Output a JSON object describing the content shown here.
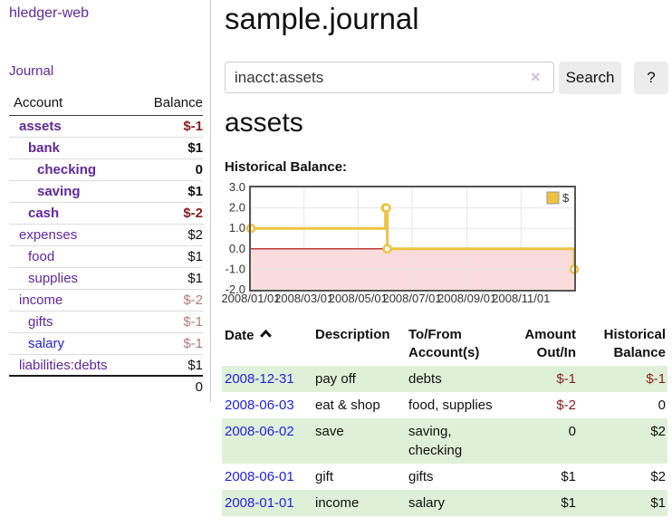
{
  "colors": {
    "accent_series": "#edc240",
    "negative_region_fill": "#fbdcdc",
    "zero_line": "#aa0000",
    "grid": "#e6e6e6",
    "link_purple": "#5f27a3",
    "link_blue": "#2222dd",
    "negative_strong": "#8b1c1c",
    "negative_soft": "#bb7878",
    "row_green": "#dff0d8",
    "plot_border": "#555555"
  },
  "brand": "hledger-web",
  "nav": {
    "journal": "Journal"
  },
  "page": {
    "title": "sample.journal",
    "account_heading": "assets"
  },
  "search": {
    "value": "inacct:assets",
    "clear": "×",
    "button_label": "Search",
    "help_label": "?"
  },
  "sidebar": {
    "header": {
      "account": "Account",
      "balance": "Balance"
    },
    "accounts": [
      {
        "name": "assets",
        "balance": "$-1"
      },
      {
        "name": "bank",
        "balance": "$1"
      },
      {
        "name": "checking",
        "balance": "0"
      },
      {
        "name": "saving",
        "balance": "$1"
      },
      {
        "name": "cash",
        "balance": "$-2"
      },
      {
        "name": "expenses",
        "balance": "$2"
      },
      {
        "name": "food",
        "balance": "$1"
      },
      {
        "name": "supplies",
        "balance": "$1"
      },
      {
        "name": "income",
        "balance": "$-2"
      },
      {
        "name": "gifts",
        "balance": "$-1"
      },
      {
        "name": "salary",
        "balance": "$-1"
      },
      {
        "name": "liabilities:debts",
        "balance": "$1"
      }
    ],
    "total": "0"
  },
  "chart_data": {
    "type": "line",
    "title": "Historical Balance:",
    "step": true,
    "grid": true,
    "legend_position": "top-right",
    "x_range": [
      "2008-01-01",
      "2008-12-31"
    ],
    "ylim": [
      -2,
      3
    ],
    "yticks": [
      {
        "v": -2,
        "label": "-2.0"
      },
      {
        "v": -1,
        "label": "-1.0"
      },
      {
        "v": 0,
        "label": "0.0"
      },
      {
        "v": 1,
        "label": "1.0"
      },
      {
        "v": 2,
        "label": "2.0"
      },
      {
        "v": 3,
        "label": "3.0"
      }
    ],
    "xticks": [
      {
        "date": "2008-01-01",
        "label": "2008/01/01"
      },
      {
        "date": "2008-03-01",
        "label": "2008/03/01"
      },
      {
        "date": "2008-05-01",
        "label": "2008/05/01"
      },
      {
        "date": "2008-07-01",
        "label": "2008/07/01"
      },
      {
        "date": "2008-09-01",
        "label": "2008/09/01"
      },
      {
        "date": "2008-11-01",
        "label": "2008/11/01"
      }
    ],
    "series": [
      {
        "name": "$",
        "color": "#edc240",
        "points": [
          [
            "2008-01-01",
            1
          ],
          [
            "2008-06-01",
            2
          ],
          [
            "2008-06-02",
            2
          ],
          [
            "2008-06-03",
            0
          ],
          [
            "2008-12-31",
            -1
          ]
        ]
      }
    ]
  },
  "register": {
    "headers": {
      "date": "Date",
      "description": "Description",
      "tofrom": "To/From Account(s)",
      "amount": "Amount Out/In",
      "balance": "Historical Balance"
    },
    "rows": [
      {
        "date": "2008-12-31",
        "description": "pay off",
        "accounts": "debts",
        "amount": "$-1",
        "balance": "$-1"
      },
      {
        "date": "2008-06-03",
        "description": "eat & shop",
        "accounts": "food, supplies",
        "amount": "$-2",
        "balance": "0"
      },
      {
        "date": "2008-06-02",
        "description": "save",
        "accounts": "saving, checking",
        "amount": "0",
        "balance": "$2"
      },
      {
        "date": "2008-06-01",
        "description": "gift",
        "accounts": "gifts",
        "amount": "$1",
        "balance": "$2"
      },
      {
        "date": "2008-01-01",
        "description": "income",
        "accounts": "salary",
        "amount": "$1",
        "balance": "$1"
      }
    ]
  }
}
